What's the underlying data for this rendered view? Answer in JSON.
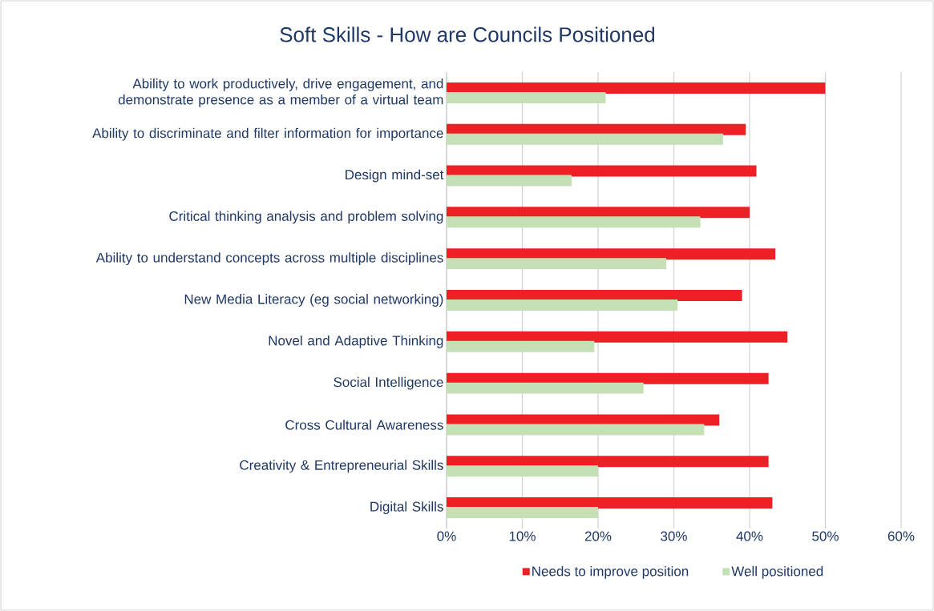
{
  "chart_data": {
    "type": "bar",
    "orientation": "horizontal",
    "title": "Soft Skills - How are Councils Positioned",
    "categories": [
      "Ability to work productively, drive engagement, and demonstrate presence as a member of a virtual team",
      "Ability to discriminate and filter information for importance",
      "Design mind-set",
      "Critical thinking analysis and problem solving",
      "Ability to understand concepts across multiple disciplines",
      "New Media Literacy (eg social networking)",
      "Novel and Adaptive Thinking",
      "Social Intelligence",
      "Cross Cultural Awareness",
      "Creativity & Entrepreneurial Skills",
      "Digital Skills"
    ],
    "series": [
      {
        "name": "Needs to improve position",
        "color": "#ee1f25",
        "values": [
          50,
          39.5,
          40.9,
          40,
          43.4,
          39,
          45,
          42.5,
          36,
          42.5,
          43
        ]
      },
      {
        "name": "Well positioned",
        "color": "#c5e0b4",
        "values": [
          21,
          36.5,
          16.5,
          33.5,
          29,
          30.5,
          19.5,
          26,
          34,
          20,
          20
        ]
      }
    ],
    "xlim": [
      0,
      60
    ],
    "xticks": [
      {
        "value": 0,
        "label": "0%"
      },
      {
        "value": 10,
        "label": "10%"
      },
      {
        "value": 20,
        "label": "20%"
      },
      {
        "value": 30,
        "label": "30%"
      },
      {
        "value": 40,
        "label": "40%"
      },
      {
        "value": 50,
        "label": "50%"
      },
      {
        "value": 60,
        "label": "60%"
      }
    ],
    "grid": "x",
    "legend": "bottom"
  }
}
